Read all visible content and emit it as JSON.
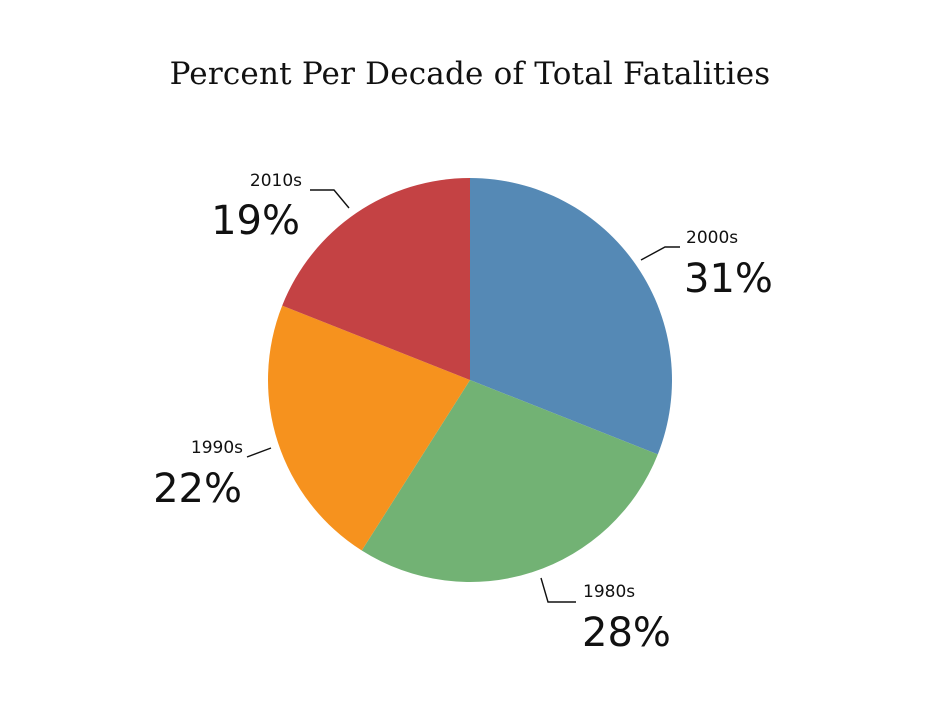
{
  "chart_data": {
    "type": "pie",
    "title": "Percent Per Decade of Total Fatalities",
    "slices": [
      {
        "label": "2000s",
        "value": 31,
        "display": "31%",
        "color": "#5589b5"
      },
      {
        "label": "1980s",
        "value": 28,
        "display": "28%",
        "color": "#72b274"
      },
      {
        "label": "1990s",
        "value": 22,
        "display": "22%",
        "color": "#f6921e"
      },
      {
        "label": "2010s",
        "value": 19,
        "display": "19%",
        "color": "#c44244"
      }
    ],
    "start_angle_deg": 0,
    "direction": "clockwise",
    "legend": "none"
  }
}
